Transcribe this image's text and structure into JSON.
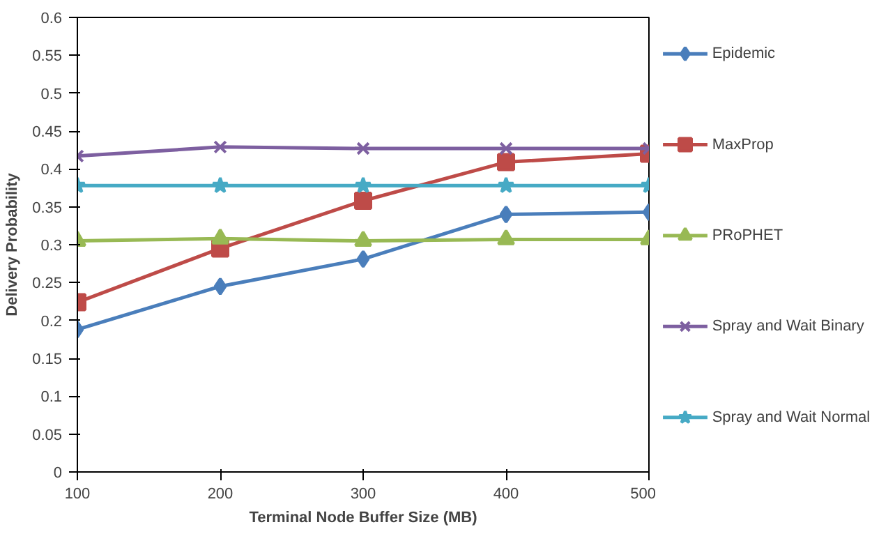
{
  "chart_data": {
    "type": "line",
    "xlabel": "Terminal Node Buffer Size (MB)",
    "ylabel": "Delivery Probability",
    "x": [
      100,
      200,
      300,
      400,
      500
    ],
    "xlim": [
      100,
      500
    ],
    "xticks": [
      100,
      200,
      300,
      400,
      500
    ],
    "ylim": [
      0,
      0.6
    ],
    "yticks": [
      0,
      0.05,
      0.1,
      0.15,
      0.2,
      0.25,
      0.3,
      0.35,
      0.4,
      0.45,
      0.5,
      0.55,
      0.6
    ],
    "grid": false,
    "legend": "right",
    "series": [
      {
        "name": "Epidemic",
        "color": "#4a7ebb",
        "marker": "diamond",
        "values": [
          0.188,
          0.245,
          0.281,
          0.34,
          0.343
        ]
      },
      {
        "name": "MaxProp",
        "color": "#be4b48",
        "marker": "square",
        "values": [
          0.224,
          0.295,
          0.358,
          0.409,
          0.42
        ]
      },
      {
        "name": "PRoPHET",
        "color": "#98b954",
        "marker": "triangle",
        "values": [
          0.305,
          0.308,
          0.305,
          0.307,
          0.307
        ]
      },
      {
        "name": "Spray and Wait Binary",
        "color": "#7d5fa0",
        "marker": "cross",
        "values": [
          0.417,
          0.429,
          0.427,
          0.427,
          0.427
        ]
      },
      {
        "name": "Spray and Wait Normal",
        "color": "#46aac5",
        "marker": "star",
        "values": [
          0.378,
          0.378,
          0.378,
          0.378,
          0.378
        ]
      }
    ]
  }
}
